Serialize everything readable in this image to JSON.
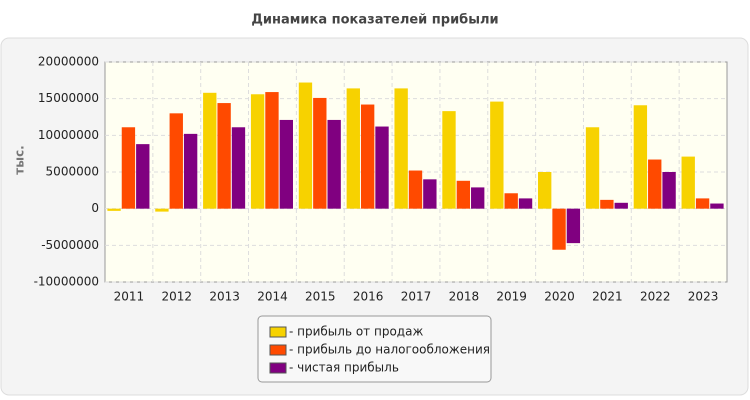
{
  "chart_data": {
    "type": "bar",
    "title": "Динамика показателей прибыли",
    "y_label": "тыс.",
    "categories": [
      "2011",
      "2012",
      "2013",
      "2014",
      "2015",
      "2016",
      "2017",
      "2018",
      "2019",
      "2020",
      "2021",
      "2022",
      "2023"
    ],
    "series": [
      {
        "name": "- прибыль от продаж",
        "color": "#f7d200",
        "values": [
          -300000,
          -400000,
          15800000,
          15600000,
          17200000,
          16400000,
          16400000,
          13300000,
          14600000,
          5000000,
          11100000,
          14100000,
          7100000
        ]
      },
      {
        "name": "- прибыль до налогообложения",
        "color": "#ff4a00",
        "values": [
          11100000,
          13000000,
          14400000,
          15900000,
          15100000,
          14200000,
          5200000,
          3800000,
          2100000,
          -5600000,
          1200000,
          6700000,
          1400000
        ]
      },
      {
        "name": "- чистая прибыль",
        "color": "#800080",
        "values": [
          8800000,
          10200000,
          11100000,
          12100000,
          12100000,
          11200000,
          4000000,
          2900000,
          1400000,
          -4700000,
          800000,
          5000000,
          700000
        ]
      }
    ],
    "ylim": [
      -10000000,
      20000000
    ],
    "yticks": [
      -10000000,
      -5000000,
      0,
      5000000,
      10000000,
      15000000,
      20000000
    ],
    "grid": true
  }
}
